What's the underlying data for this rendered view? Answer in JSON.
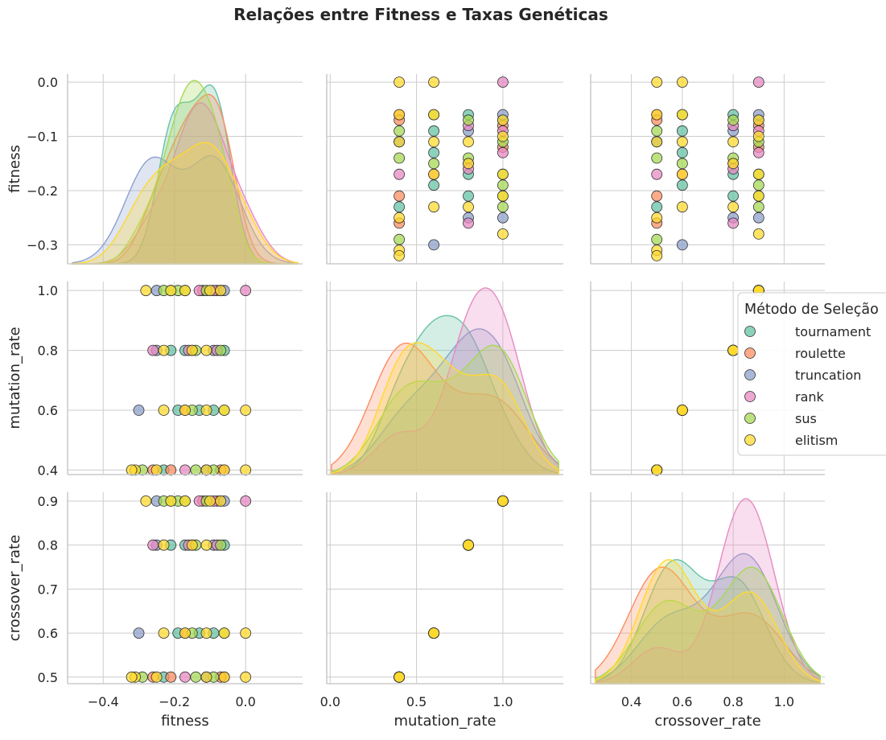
{
  "chart_data": {
    "type": "pairplot",
    "title": "Relações entre Fitness e Taxas Genéticas",
    "variables": [
      "fitness",
      "mutation_rate",
      "crossover_rate"
    ],
    "axis": {
      "fitness": {
        "range": [
          -0.5,
          0.16
        ],
        "ticks": [
          -0.4,
          -0.2,
          0.0
        ],
        "tick_labels": [
          "−0.4",
          "−0.2",
          "0.0"
        ],
        "y_range": [
          -0.335,
          0.015
        ],
        "y_ticks": [
          0.0,
          -0.1,
          -0.2,
          -0.3
        ],
        "y_tick_labels": [
          "0.0",
          "−0.1",
          "−0.2",
          "−0.3"
        ]
      },
      "mutation_rate": {
        "range": [
          -0.02,
          1.35
        ],
        "ticks": [
          0.0,
          0.5,
          1.0
        ],
        "tick_labels": [
          "0.0",
          "0.5",
          "1.0"
        ],
        "y_range": [
          0.385,
          1.03
        ],
        "y_ticks": [
          1.0,
          0.8,
          0.6,
          0.4
        ],
        "y_tick_labels": [
          "1.0",
          "0.8",
          "0.6",
          "0.4"
        ]
      },
      "crossover_rate": {
        "range": [
          0.24,
          1.16
        ],
        "ticks": [
          0.4,
          0.6,
          0.8,
          1.0
        ],
        "tick_labels": [
          "0.4",
          "0.6",
          "0.8",
          "1.0"
        ],
        "y_range": [
          0.485,
          0.92
        ],
        "y_ticks": [
          0.9,
          0.8,
          0.7,
          0.6,
          0.5
        ],
        "y_tick_labels": [
          "0.9",
          "0.8",
          "0.7",
          "0.6",
          "0.5"
        ]
      }
    },
    "grid": true,
    "legend": {
      "title": "Método de Seleção",
      "placement": "right",
      "entries": [
        {
          "name": "tournament",
          "color": "#66c2a5"
        },
        {
          "name": "roulette",
          "color": "#fc8d62"
        },
        {
          "name": "truncation",
          "color": "#8da0cb"
        },
        {
          "name": "rank",
          "color": "#e78ac3"
        },
        {
          "name": "sus",
          "color": "#a6d854"
        },
        {
          "name": "elitism",
          "color": "#ffd92f"
        }
      ]
    },
    "series": [
      {
        "name": "tournament",
        "points": [
          {
            "fitness": -0.07,
            "mutation_rate": 1.0,
            "crossover_rate": 0.9
          },
          {
            "fitness": -0.09,
            "mutation_rate": 0.6,
            "crossover_rate": 0.6
          },
          {
            "fitness": -0.13,
            "mutation_rate": 0.6,
            "crossover_rate": 0.6
          },
          {
            "fitness": -0.19,
            "mutation_rate": 0.6,
            "crossover_rate": 0.6
          },
          {
            "fitness": -0.21,
            "mutation_rate": 0.8,
            "crossover_rate": 0.8
          },
          {
            "fitness": -0.23,
            "mutation_rate": 0.4,
            "crossover_rate": 0.5
          },
          {
            "fitness": -0.06,
            "mutation_rate": 0.8,
            "crossover_rate": 0.8
          },
          {
            "fitness": -0.11,
            "mutation_rate": 0.4,
            "crossover_rate": 0.5
          },
          {
            "fitness": -0.17,
            "mutation_rate": 0.8,
            "crossover_rate": 0.8
          }
        ]
      },
      {
        "name": "roulette",
        "points": [
          {
            "fitness": -0.26,
            "mutation_rate": 0.4,
            "crossover_rate": 0.5
          },
          {
            "fitness": -0.12,
            "mutation_rate": 1.0,
            "crossover_rate": 0.9
          },
          {
            "fitness": -0.06,
            "mutation_rate": 0.4,
            "crossover_rate": 0.5
          },
          {
            "fitness": -0.07,
            "mutation_rate": 0.4,
            "crossover_rate": 0.5
          },
          {
            "fitness": -0.15,
            "mutation_rate": 0.8,
            "crossover_rate": 0.8
          },
          {
            "fitness": -0.17,
            "mutation_rate": 0.6,
            "crossover_rate": 0.6
          },
          {
            "fitness": -0.21,
            "mutation_rate": 0.4,
            "crossover_rate": 0.5
          },
          {
            "fitness": -0.08,
            "mutation_rate": 1.0,
            "crossover_rate": 0.9
          }
        ]
      },
      {
        "name": "truncation",
        "points": [
          {
            "fitness": -0.3,
            "mutation_rate": 0.6,
            "crossover_rate": 0.6
          },
          {
            "fitness": -0.25,
            "mutation_rate": 1.0,
            "crossover_rate": 0.9
          },
          {
            "fitness": -0.25,
            "mutation_rate": 0.8,
            "crossover_rate": 0.8
          },
          {
            "fitness": -0.09,
            "mutation_rate": 0.8,
            "crossover_rate": 0.8
          },
          {
            "fitness": -0.11,
            "mutation_rate": 0.4,
            "crossover_rate": 0.5
          },
          {
            "fitness": -0.06,
            "mutation_rate": 1.0,
            "crossover_rate": 0.9
          }
        ]
      },
      {
        "name": "rank",
        "points": [
          {
            "fitness": -0.26,
            "mutation_rate": 0.8,
            "crossover_rate": 0.8
          },
          {
            "fitness": -0.17,
            "mutation_rate": 0.4,
            "crossover_rate": 0.5
          },
          {
            "fitness": -0.13,
            "mutation_rate": 1.0,
            "crossover_rate": 0.9
          },
          {
            "fitness": -0.09,
            "mutation_rate": 1.0,
            "crossover_rate": 0.9
          },
          {
            "fitness": -0.16,
            "mutation_rate": 0.8,
            "crossover_rate": 0.8
          },
          {
            "fitness": 0.0,
            "mutation_rate": 1.0,
            "crossover_rate": 0.9
          },
          {
            "fitness": -0.08,
            "mutation_rate": 0.8,
            "crossover_rate": 0.8
          }
        ]
      },
      {
        "name": "sus",
        "points": [
          {
            "fitness": -0.29,
            "mutation_rate": 0.4,
            "crossover_rate": 0.5
          },
          {
            "fitness": -0.14,
            "mutation_rate": 0.4,
            "crossover_rate": 0.5
          },
          {
            "fitness": -0.23,
            "mutation_rate": 1.0,
            "crossover_rate": 0.9
          },
          {
            "fitness": -0.19,
            "mutation_rate": 1.0,
            "crossover_rate": 0.9
          },
          {
            "fitness": -0.09,
            "mutation_rate": 0.4,
            "crossover_rate": 0.5
          },
          {
            "fitness": -0.14,
            "mutation_rate": 0.8,
            "crossover_rate": 0.8
          },
          {
            "fitness": -0.07,
            "mutation_rate": 0.8,
            "crossover_rate": 0.8
          },
          {
            "fitness": -0.15,
            "mutation_rate": 0.6,
            "crossover_rate": 0.6
          },
          {
            "fitness": -0.11,
            "mutation_rate": 1.0,
            "crossover_rate": 0.9
          },
          {
            "fitness": -0.06,
            "mutation_rate": 0.6,
            "crossover_rate": 0.6
          },
          {
            "fitness": -0.21,
            "mutation_rate": 1.0,
            "crossover_rate": 0.9
          },
          {
            "fitness": -0.17,
            "mutation_rate": 1.0,
            "crossover_rate": 0.9
          }
        ]
      },
      {
        "name": "elitism",
        "points": [
          {
            "fitness": -0.31,
            "mutation_rate": 0.4,
            "crossover_rate": 0.5
          },
          {
            "fitness": -0.32,
            "mutation_rate": 0.4,
            "crossover_rate": 0.5
          },
          {
            "fitness": -0.25,
            "mutation_rate": 0.4,
            "crossover_rate": 0.5
          },
          {
            "fitness": -0.28,
            "mutation_rate": 1.0,
            "crossover_rate": 0.9
          },
          {
            "fitness": -0.21,
            "mutation_rate": 1.0,
            "crossover_rate": 0.9
          },
          {
            "fitness": -0.23,
            "mutation_rate": 0.6,
            "crossover_rate": 0.6
          },
          {
            "fitness": -0.17,
            "mutation_rate": 0.6,
            "crossover_rate": 0.6
          },
          {
            "fitness": -0.15,
            "mutation_rate": 0.8,
            "crossover_rate": 0.8
          },
          {
            "fitness": -0.23,
            "mutation_rate": 0.8,
            "crossover_rate": 0.8
          },
          {
            "fitness": -0.11,
            "mutation_rate": 0.4,
            "crossover_rate": 0.5
          },
          {
            "fitness": -0.11,
            "mutation_rate": 0.6,
            "crossover_rate": 0.6
          },
          {
            "fitness": -0.11,
            "mutation_rate": 0.8,
            "crossover_rate": 0.8
          },
          {
            "fitness": -0.17,
            "mutation_rate": 1.0,
            "crossover_rate": 0.9
          },
          {
            "fitness": -0.07,
            "mutation_rate": 1.0,
            "crossover_rate": 0.9
          },
          {
            "fitness": -0.06,
            "mutation_rate": 0.6,
            "crossover_rate": 0.6
          },
          {
            "fitness": -0.06,
            "mutation_rate": 0.4,
            "crossover_rate": 0.5
          },
          {
            "fitness": 0.0,
            "mutation_rate": 0.6,
            "crossover_rate": 0.6
          },
          {
            "fitness": 0.0,
            "mutation_rate": 0.4,
            "crossover_rate": 0.5
          },
          {
            "fitness": -0.1,
            "mutation_rate": 1.0,
            "crossover_rate": 0.9
          }
        ]
      }
    ]
  }
}
